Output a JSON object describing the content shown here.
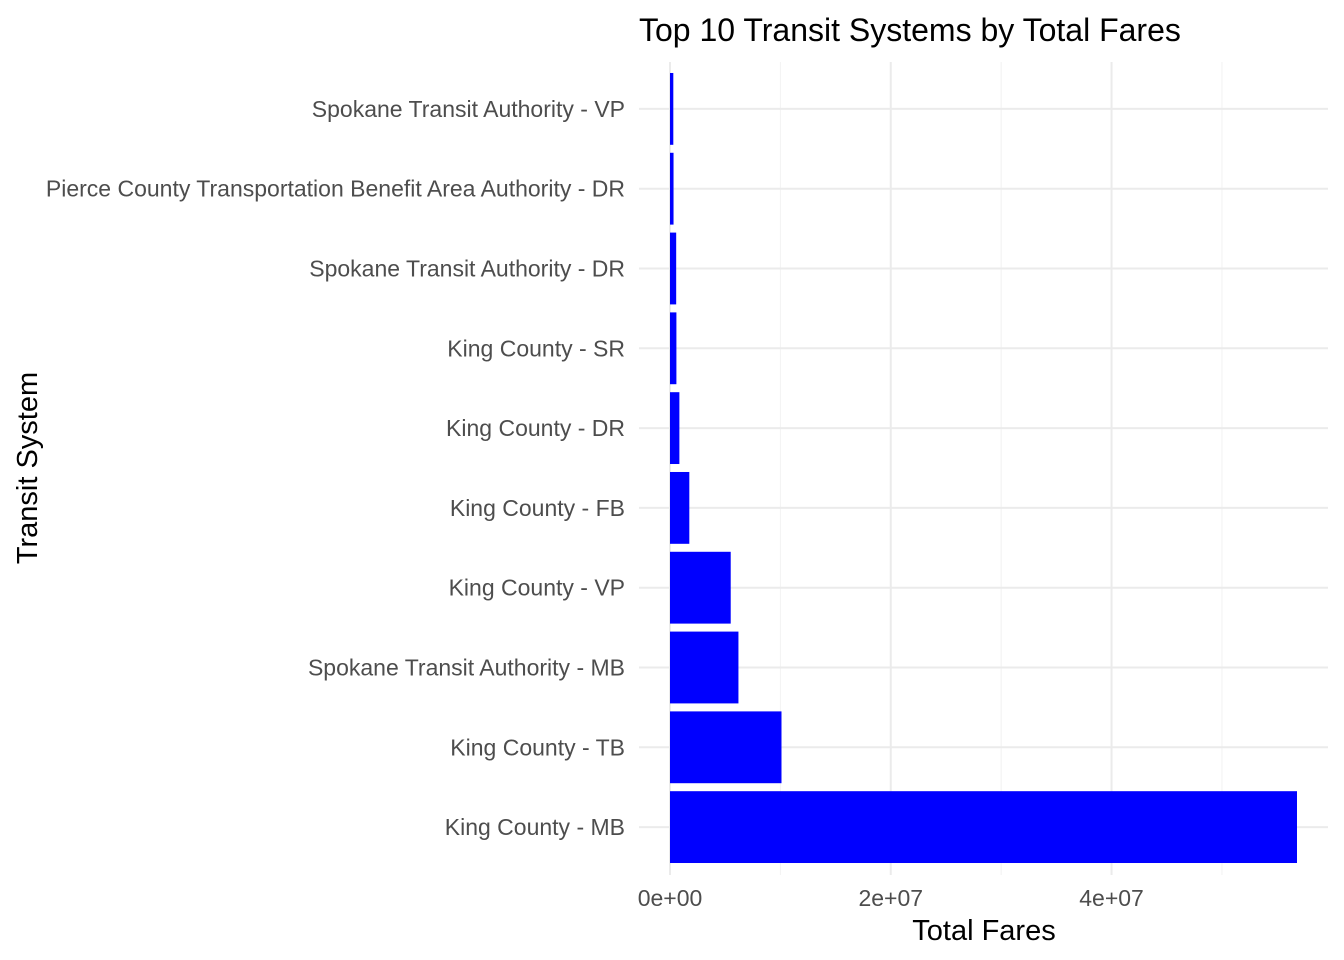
{
  "chart_data": {
    "type": "bar",
    "orientation": "horizontal",
    "title": "Top 10 Transit Systems by Total Fares",
    "xlabel": "Total Fares",
    "ylabel": "Transit System",
    "categories": [
      "King County - MB",
      "King County - TB",
      "Spokane Transit Authority - MB",
      "King County - VP",
      "King County - FB",
      "King County - DR",
      "King County - SR",
      "Spokane Transit Authority - DR",
      "Pierce County Transportation Benefit Area Authority - DR",
      "Spokane Transit Authority - VP"
    ],
    "values": [
      56800000,
      10100000,
      6200000,
      5500000,
      1750000,
      850000,
      580000,
      560000,
      320000,
      300000
    ],
    "xlim": [
      0,
      59000000
    ],
    "xticks": [
      0,
      20000000,
      40000000
    ],
    "xtick_labels": [
      "0e+00",
      "2e+07",
      "4e+07"
    ],
    "bar_color": "#0000ff",
    "grid": true,
    "legend": "none"
  }
}
